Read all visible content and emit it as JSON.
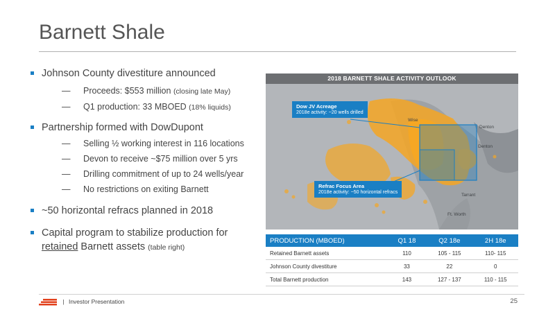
{
  "slide": {
    "title": "Barnett Shale"
  },
  "bullets": [
    {
      "text": "Johnson County divestiture announced",
      "subs": [
        {
          "text": "Proceeds: $553 million ",
          "small": "(closing late May)"
        },
        {
          "text": "Q1 production: 33 MBOED ",
          "small": "(18% liquids)"
        }
      ]
    },
    {
      "text": "Partnership formed with DowDupont",
      "subs": [
        {
          "text": "Selling ½ working interest in 116 locations"
        },
        {
          "text": "Devon to receive ~$75 million over 5 yrs"
        },
        {
          "text": "Drilling commitment of up to 24 wells/year"
        },
        {
          "text": "No restrictions on exiting Barnett"
        }
      ]
    },
    {
      "text": "~50 horizontal refracs planned in 2018"
    },
    {
      "text_line1": "Capital program to stabilize production for",
      "text_underlined": "retained",
      "text_rest": " Barnett assets ",
      "small": "(table right)"
    }
  ],
  "map": {
    "title": "2018 BARNETT SHALE ACTIVITY OUTLOOK",
    "callout_dow": {
      "title": "Dow JV Acreage",
      "body": "2018e activity: ~20 wells drilled"
    },
    "callout_refrac": {
      "title": "Refrac Focus Area",
      "body": "2018e activity: ~50 horizontal refracs"
    },
    "cities": {
      "wise": "Wise",
      "denton1": "Denton",
      "denton2": "Denton",
      "tarrant": "Tarrant",
      "ft_worth": "Ft. Worth"
    },
    "colors": {
      "acreage": "#f5a623",
      "background": "#a9acb0",
      "highlight": "#1a7fc4"
    }
  },
  "production_table": {
    "headers": [
      "PRODUCTION (MBOED)",
      "Q1 18",
      "Q2 18e",
      "2H 18e"
    ],
    "rows": [
      [
        "Retained Barnett assets",
        "110",
        "105 - 115",
        "110- 115"
      ],
      [
        "Johnson County divestiture",
        "33",
        "22",
        "0"
      ],
      [
        "Total Barnett production",
        "143",
        "127 - 137",
        "110 - 115"
      ]
    ]
  },
  "footer": {
    "label": "Investor Presentation",
    "page_number": "25"
  }
}
